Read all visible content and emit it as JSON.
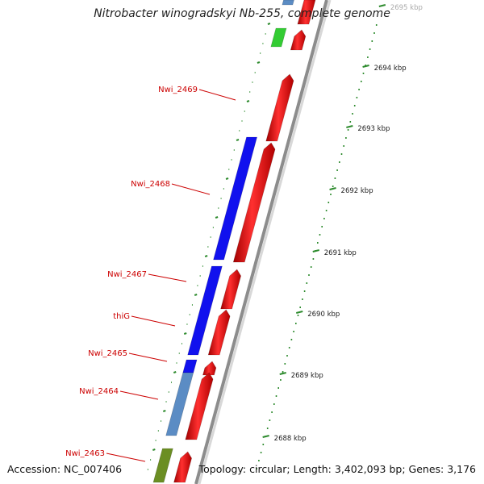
{
  "title": "Nitrobacter winogradskyi Nb-255, complete genome",
  "accession": "Accession: NC_007406",
  "topology": "Topology: circular; Length: 3,402,093 bp; Genes: 3,176",
  "colors": {
    "forward": "#ee1111",
    "reverse": "#1111ee",
    "reverse_light": "#5b8cc4",
    "green": "#33cc33",
    "olive": "#6b8e23",
    "label": "#cc0000",
    "tick": "#2e8b2e",
    "backbone": "#8c8c8c"
  },
  "scale": [
    {
      "label": "2695 kbp"
    },
    {
      "label": "2694 kbp"
    },
    {
      "label": "2693 kbp"
    },
    {
      "label": "2692 kbp"
    },
    {
      "label": "2691 kbp"
    },
    {
      "label": "2690 kbp"
    },
    {
      "label": "2689 kbp"
    },
    {
      "label": "2688 kbp"
    }
  ],
  "gene_labels": [
    {
      "name": "Nwi_2469"
    },
    {
      "name": "Nwi_2468"
    },
    {
      "name": "Nwi_2467"
    },
    {
      "name": "thiG"
    },
    {
      "name": "Nwi_2465"
    },
    {
      "name": "Nwi_2464"
    },
    {
      "name": "Nwi_2463"
    }
  ]
}
